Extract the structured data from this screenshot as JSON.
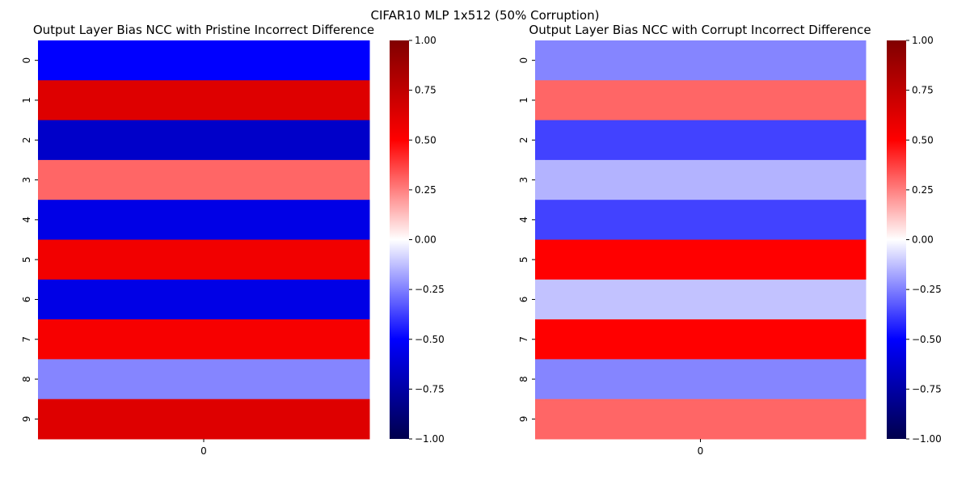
{
  "figure": {
    "suptitle": "CIFAR10 MLP 1x512 (50% Corruption)"
  },
  "chart_data": [
    {
      "type": "heatmap",
      "title": "Output Layer Bias NCC with Pristine Incorrect Difference",
      "xlabel": "",
      "ylabel": "",
      "x_tick_labels": [
        "0"
      ],
      "y_tick_labels": [
        "0",
        "1",
        "2",
        "3",
        "4",
        "5",
        "6",
        "7",
        "8",
        "9"
      ],
      "values": [
        [
          -0.5
        ],
        [
          0.63
        ],
        [
          -0.65
        ],
        [
          0.3
        ],
        [
          -0.57
        ],
        [
          0.55
        ],
        [
          -0.57
        ],
        [
          0.53
        ],
        [
          -0.24
        ],
        [
          0.63
        ]
      ],
      "colormap": "seismic",
      "vmin": -1.0,
      "vmax": 1.0,
      "colorbar_ticks": [
        "1.00",
        "0.75",
        "0.50",
        "0.25",
        "0.00",
        "−0.25",
        "−0.50",
        "−0.75",
        "−1.00"
      ]
    },
    {
      "type": "heatmap",
      "title": "Output Layer Bias NCC with Corrupt Incorrect Difference",
      "xlabel": "",
      "ylabel": "",
      "x_tick_labels": [
        "0"
      ],
      "y_tick_labels": [
        "0",
        "1",
        "2",
        "3",
        "4",
        "5",
        "6",
        "7",
        "8",
        "9"
      ],
      "values": [
        [
          -0.24
        ],
        [
          0.3
        ],
        [
          -0.37
        ],
        [
          -0.15
        ],
        [
          -0.37
        ],
        [
          0.5
        ],
        [
          -0.12
        ],
        [
          0.5
        ],
        [
          -0.24
        ],
        [
          0.3
        ]
      ],
      "colormap": "seismic",
      "vmin": -1.0,
      "vmax": 1.0,
      "colorbar_ticks": [
        "1.00",
        "0.75",
        "0.50",
        "0.25",
        "0.00",
        "−0.25",
        "−0.50",
        "−0.75",
        "−1.00"
      ]
    }
  ]
}
